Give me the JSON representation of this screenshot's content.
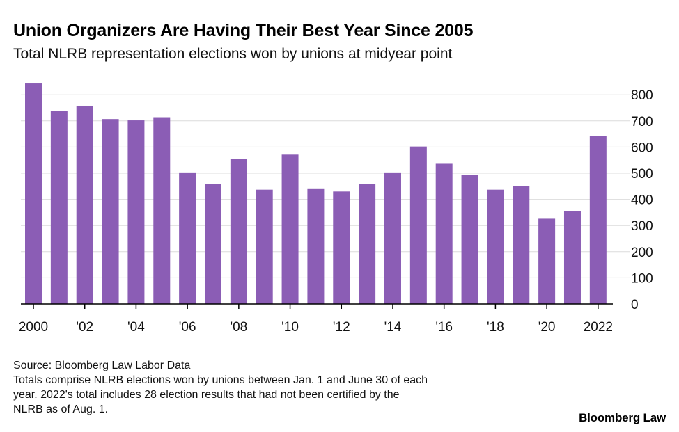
{
  "header": {
    "title": "Union Organizers Are Having Their Best Year Since 2005",
    "subtitle": "Total NLRB representation elections won by unions at midyear point"
  },
  "footer": {
    "source": "Source: Bloomberg Law Labor Data",
    "note_line1": "Totals comprise NLRB elections won by unions between Jan. 1 and June 30 of each",
    "note_line2": "year. 2022's total includes 28 election results that had not been certified by the",
    "note_line3": "NLRB as of Aug. 1.",
    "logo": "Bloomberg Law"
  },
  "colors": {
    "bar": "#8b5db5",
    "grid": "#dcdcdc",
    "axis": "#000000"
  },
  "chart_data": {
    "type": "bar",
    "title": "Union Organizers Are Having Their Best Year Since 2005",
    "subtitle": "Total NLRB representation elections won by unions at midyear point",
    "xlabel": "",
    "ylabel": "",
    "ylim": [
      0,
      850
    ],
    "yticks": [
      0,
      100,
      200,
      300,
      400,
      500,
      600,
      700,
      800
    ],
    "y_axis_position": "right",
    "grid": true,
    "categories": [
      "2000",
      "2001",
      "2002",
      "2003",
      "2004",
      "2005",
      "2006",
      "2007",
      "2008",
      "2009",
      "2010",
      "2011",
      "2012",
      "2013",
      "2014",
      "2015",
      "2016",
      "2017",
      "2018",
      "2019",
      "2020",
      "2021",
      "2022"
    ],
    "values": [
      843,
      739,
      758,
      707,
      702,
      714,
      503,
      459,
      555,
      437,
      571,
      442,
      430,
      459,
      503,
      602,
      536,
      494,
      437,
      451,
      326,
      354,
      643
    ],
    "xtick_labels": [
      {
        "category": "2000",
        "label": "2000"
      },
      {
        "category": "2002",
        "label": "'02"
      },
      {
        "category": "2004",
        "label": "'04"
      },
      {
        "category": "2006",
        "label": "'06"
      },
      {
        "category": "2008",
        "label": "'08"
      },
      {
        "category": "2010",
        "label": "'10"
      },
      {
        "category": "2012",
        "label": "'12"
      },
      {
        "category": "2014",
        "label": "'14"
      },
      {
        "category": "2016",
        "label": "'16"
      },
      {
        "category": "2018",
        "label": "'18"
      },
      {
        "category": "2020",
        "label": "'20"
      },
      {
        "category": "2022",
        "label": "2022"
      }
    ]
  }
}
